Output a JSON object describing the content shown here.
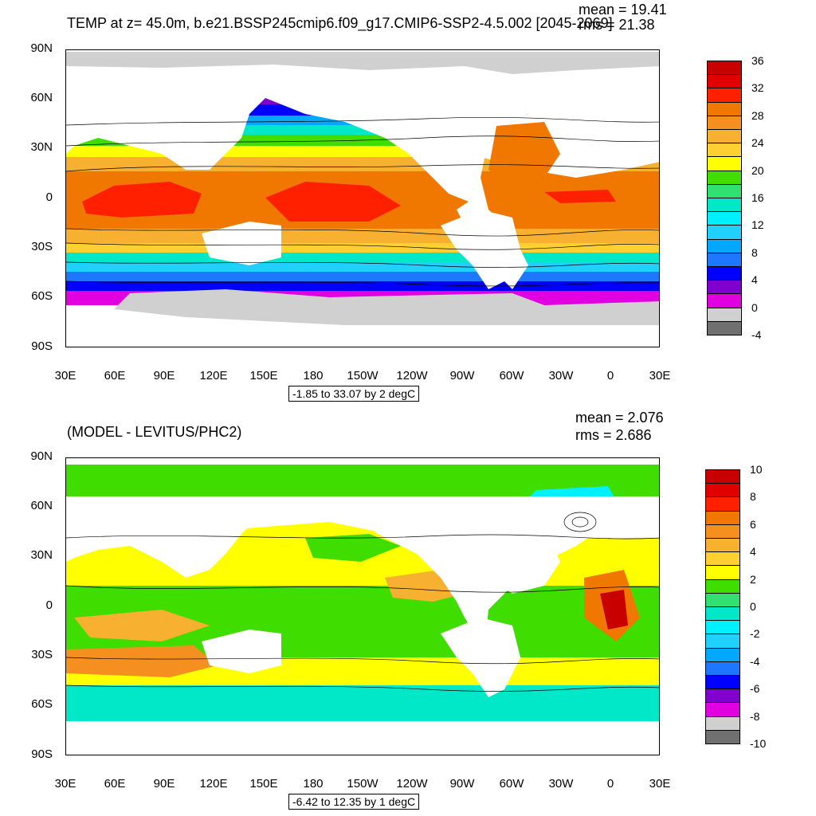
{
  "top": {
    "title": "TEMP at z=  45.0m, b.e21.BSSP245cmip6.f09_g17.CMIP6-SSP2-4.5.002 [2045-2069]",
    "mean": "mean = 19.41",
    "rms": "rms = 21.38",
    "range": "-1.85 to 33.07 by 2 degC",
    "colorbar_labels": [
      "36",
      "32",
      "28",
      "24",
      "20",
      "16",
      "12",
      "8",
      "4",
      "0",
      "-4"
    ],
    "colorbar_colors": [
      "#c80000",
      "#e00000",
      "#ff2000",
      "#f07800",
      "#f59020",
      "#f8b030",
      "#ffd030",
      "#ffff00",
      "#40dd00",
      "#30e070",
      "#00e8c8",
      "#00f0ff",
      "#20d0ff",
      "#00a8ff",
      "#1e78ff",
      "#0000ff",
      "#8000d0",
      "#e000e0",
      "#d0d0d0",
      "#707070"
    ]
  },
  "bottom": {
    "title": "(MODEL - LEVITUS/PHC2)",
    "mean": "mean = 2.076",
    "rms": "rms = 2.686",
    "range": "-6.42 to 12.35 by 1 degC",
    "colorbar_labels": [
      "10",
      "8",
      "6",
      "4",
      "2",
      "0",
      "-2",
      "-4",
      "-6",
      "-8",
      "-10"
    ],
    "colorbar_colors": [
      "#c80000",
      "#e00000",
      "#ff2000",
      "#f07800",
      "#f59020",
      "#f8b030",
      "#ffd030",
      "#ffff00",
      "#40dd00",
      "#30e070",
      "#00e8c8",
      "#00f0ff",
      "#20d0ff",
      "#00a8ff",
      "#1e78ff",
      "#0000ff",
      "#8000d0",
      "#e000e0",
      "#d0d0d0",
      "#707070"
    ]
  },
  "axes": {
    "lat_labels": [
      "90N",
      "60N",
      "30N",
      "0",
      "30S",
      "60S",
      "90S"
    ],
    "lon_labels": [
      "30E",
      "60E",
      "90E",
      "120E",
      "150E",
      "180",
      "150W",
      "120W",
      "90W",
      "60W",
      "30W",
      "0",
      "30E"
    ]
  }
}
